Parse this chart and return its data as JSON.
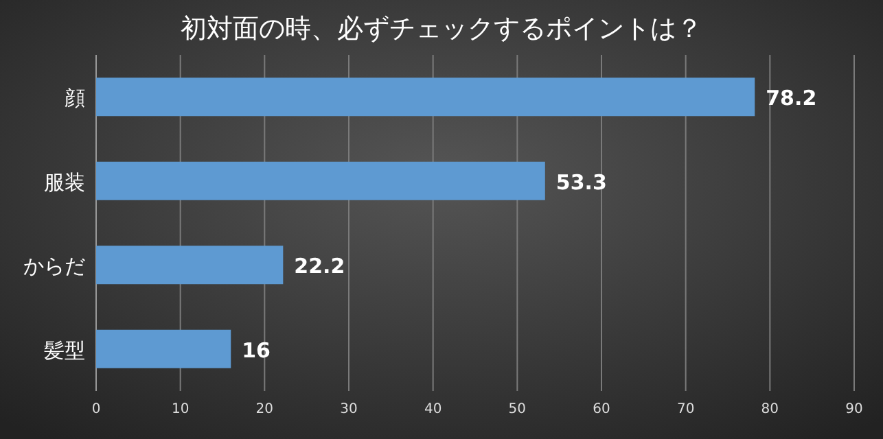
{
  "chart_data": {
    "type": "bar",
    "orientation": "horizontal",
    "title": "初対面の時、必ずチェックするポイントは？",
    "categories": [
      "顔",
      "服装",
      "からだ",
      "髪型"
    ],
    "values": [
      78.2,
      53.3,
      22.2,
      16
    ],
    "color": "#5e9ad2",
    "xlim": [
      0,
      90
    ],
    "xticks": [
      0,
      10,
      20,
      30,
      40,
      50,
      60,
      70,
      80,
      90
    ],
    "grid": "x",
    "data_labels": true
  }
}
